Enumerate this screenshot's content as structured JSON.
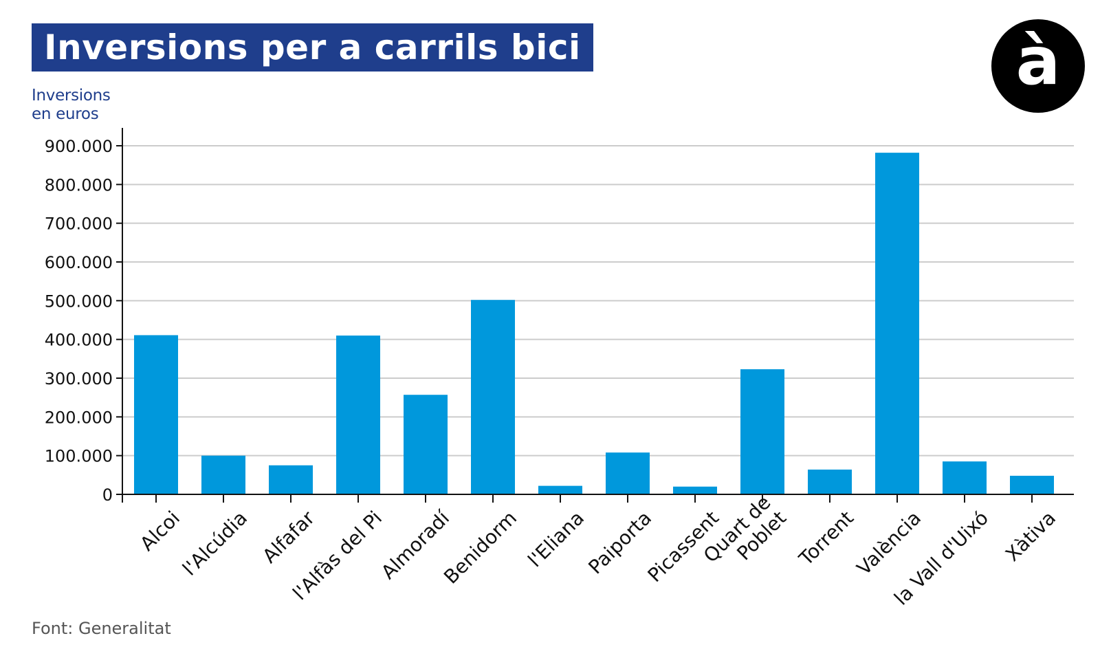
{
  "header": {
    "title": "Inversions per a carrils bici",
    "logo_text": "à"
  },
  "footer": {
    "source": "Font: Generalitat"
  },
  "colors": {
    "bar": "#0098dc",
    "title_background": "#1f3e8c",
    "ylabel": "#1f3e8c",
    "grid": "#cccccc",
    "axis": "#111111"
  },
  "chart_data": {
    "type": "bar",
    "title": "Inversions per a carrils bici",
    "ylabel_lines": [
      "Inversions",
      "en euros"
    ],
    "xlabel": "",
    "ylim": [
      0,
      900000
    ],
    "y_ticks": [
      0,
      100000,
      200000,
      300000,
      400000,
      500000,
      600000,
      700000,
      800000,
      900000
    ],
    "y_tick_labels": [
      "0",
      "100.000",
      "200.000",
      "300.000",
      "400.000",
      "500.000",
      "600.000",
      "700.000",
      "800.000",
      "900.000"
    ],
    "grid": true,
    "legend": "none",
    "categories": [
      [
        "Alcoi"
      ],
      [
        "l'Alcúdia"
      ],
      [
        "Alfafar"
      ],
      [
        "l'Alfàs del Pi"
      ],
      [
        "Almoradí"
      ],
      [
        "Benidorm"
      ],
      [
        "l'Eliana"
      ],
      [
        "Paiporta"
      ],
      [
        "Picassent"
      ],
      [
        "Quart de",
        "Poblet"
      ],
      [
        "Torrent"
      ],
      [
        "València"
      ],
      [
        "la Vall d'Uixó"
      ],
      [
        "Xàtiva"
      ]
    ],
    "values": [
      411000,
      100000,
      75000,
      410000,
      257000,
      502000,
      22000,
      108000,
      20000,
      323000,
      64000,
      882000,
      85000,
      48000
    ]
  }
}
